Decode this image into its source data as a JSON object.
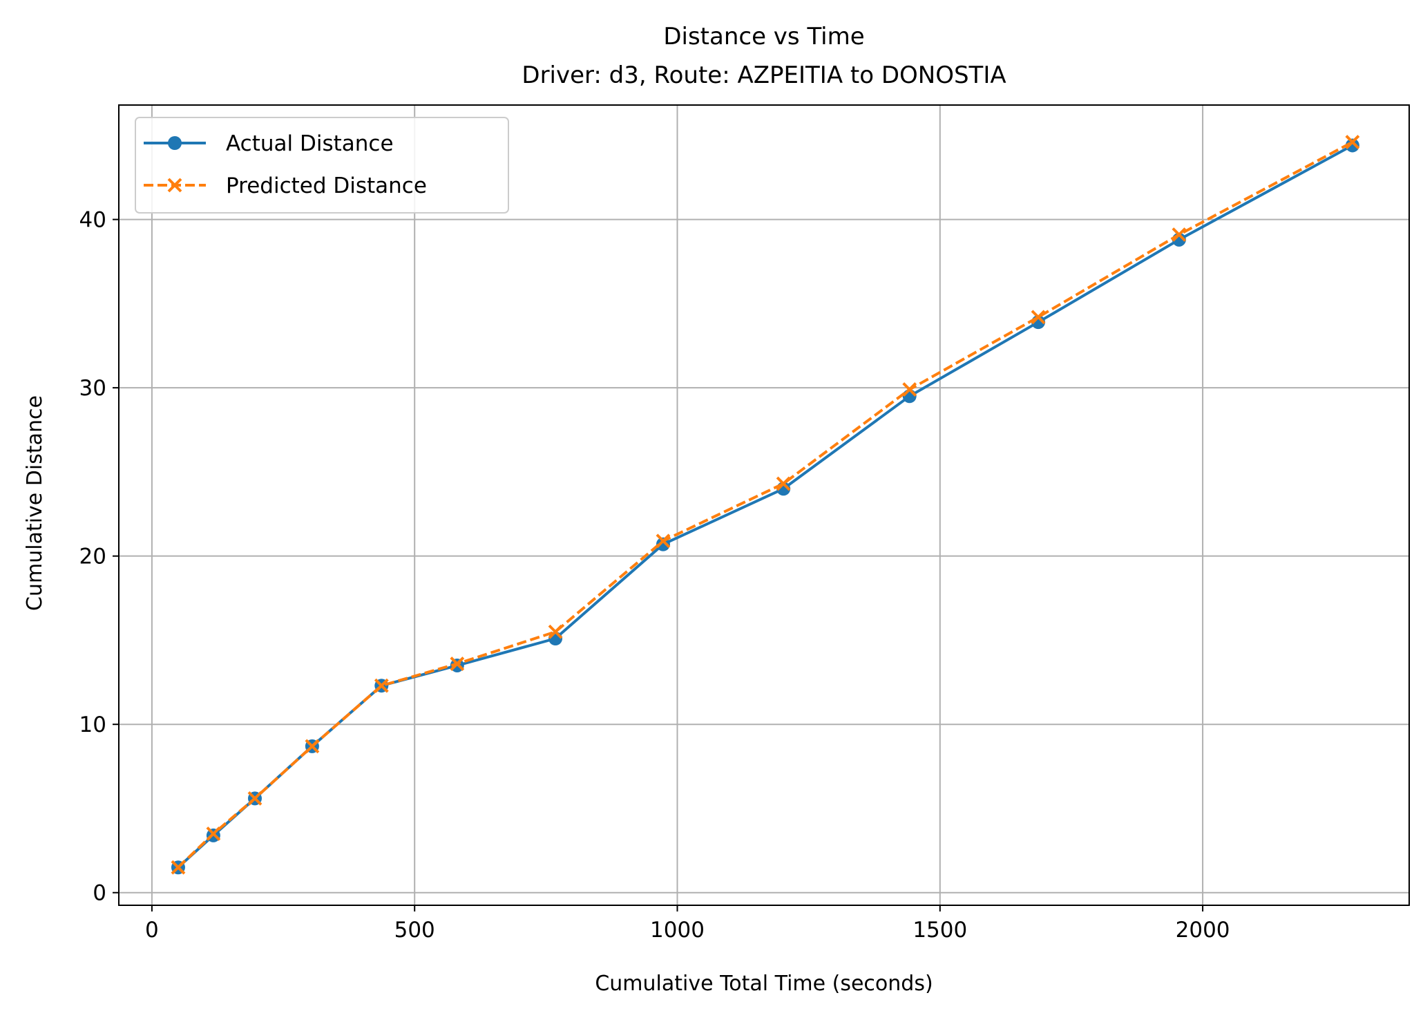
{
  "chart_data": {
    "type": "line",
    "title": "Distance vs Time",
    "subtitle": "Driver: d3, Route: AZPEITIA to DONOSTIA",
    "xlabel": "Cumulative Total Time (seconds)",
    "ylabel": "Cumulative Distance",
    "xlim": [
      -63,
      2393
    ],
    "ylim": [
      -0.75,
      46.8
    ],
    "xticks": [
      0,
      500,
      1000,
      1500,
      2000
    ],
    "yticks": [
      0,
      10,
      20,
      30,
      40
    ],
    "grid": true,
    "legend_position": "top-left",
    "series": [
      {
        "name": "Actual Distance",
        "color": "#1f77b4",
        "line_style": "solid",
        "marker": "circle",
        "x": [
          50,
          117,
          196,
          305,
          437,
          581,
          768,
          973,
          1202,
          1442,
          1687,
          1955,
          2285
        ],
        "y": [
          1.5,
          3.4,
          5.6,
          8.7,
          12.3,
          13.5,
          15.1,
          20.7,
          24.0,
          29.5,
          33.9,
          38.8,
          44.4
        ]
      },
      {
        "name": "Predicted Distance",
        "color": "#ff7f0e",
        "line_style": "dashed",
        "marker": "x",
        "x": [
          50,
          117,
          196,
          305,
          437,
          581,
          768,
          973,
          1202,
          1442,
          1687,
          1955,
          2285
        ],
        "y": [
          1.5,
          3.5,
          5.6,
          8.7,
          12.3,
          13.6,
          15.5,
          20.9,
          24.3,
          29.9,
          34.2,
          39.1,
          44.6
        ]
      }
    ]
  }
}
